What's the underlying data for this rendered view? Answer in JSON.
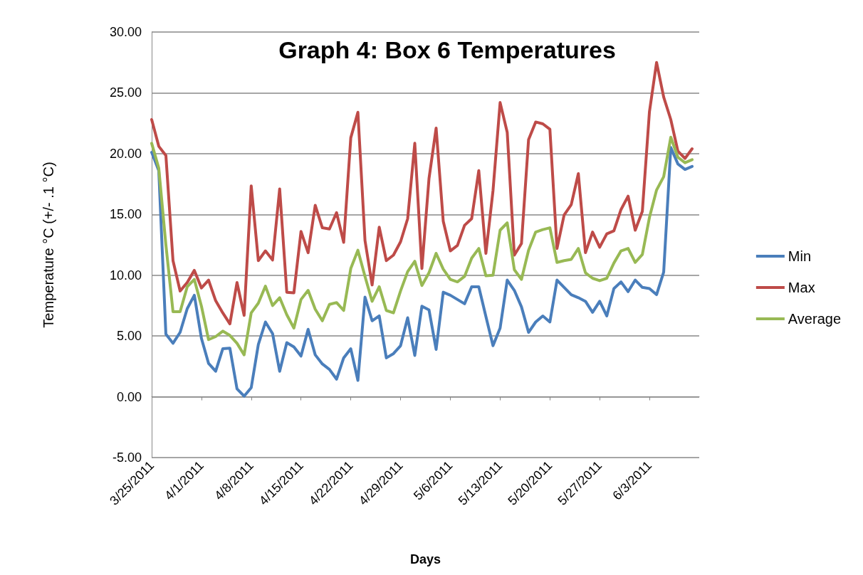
{
  "chart_data": {
    "type": "line",
    "title": "Graph 4: Box 6 Temperatures",
    "xlabel": "Days",
    "ylabel": "Temperature °C (+/- .1 °C)",
    "x": [
      "2011-03-25",
      "2011-03-26",
      "2011-03-27",
      "2011-03-28",
      "2011-03-29",
      "2011-03-30",
      "2011-03-31",
      "2011-04-01",
      "2011-04-02",
      "2011-04-03",
      "2011-04-04",
      "2011-04-05",
      "2011-04-06",
      "2011-04-07",
      "2011-04-08",
      "2011-04-09",
      "2011-04-10",
      "2011-04-11",
      "2011-04-12",
      "2011-04-13",
      "2011-04-14",
      "2011-04-15",
      "2011-04-16",
      "2011-04-17",
      "2011-04-18",
      "2011-04-19",
      "2011-04-20",
      "2011-04-21",
      "2011-04-22",
      "2011-04-23",
      "2011-04-24",
      "2011-04-25",
      "2011-04-26",
      "2011-04-27",
      "2011-04-28",
      "2011-04-29",
      "2011-04-30",
      "2011-05-01",
      "2011-05-02",
      "2011-05-03",
      "2011-05-04",
      "2011-05-05",
      "2011-05-06",
      "2011-05-07",
      "2011-05-08",
      "2011-05-09",
      "2011-05-10",
      "2011-05-11",
      "2011-05-12",
      "2011-05-13",
      "2011-05-14",
      "2011-05-15",
      "2011-05-16",
      "2011-05-17",
      "2011-05-18",
      "2011-05-19",
      "2011-05-20",
      "2011-05-21",
      "2011-05-22",
      "2011-05-23",
      "2011-05-24",
      "2011-05-25",
      "2011-05-26",
      "2011-05-27",
      "2011-05-28",
      "2011-05-29",
      "2011-05-30",
      "2011-05-31",
      "2011-06-01",
      "2011-06-02",
      "2011-06-03",
      "2011-06-04",
      "2011-06-05",
      "2011-06-06",
      "2011-06-07",
      "2011-06-08",
      "2011-06-09"
    ],
    "series": [
      {
        "name": "Min",
        "color": "#4a7ebb",
        "values": [
          20.1,
          18.6,
          5.15,
          4.4,
          5.3,
          7.25,
          8.35,
          4.8,
          2.75,
          2.1,
          3.95,
          4.0,
          0.65,
          0.05,
          0.75,
          4.3,
          6.15,
          5.2,
          2.1,
          4.45,
          4.1,
          3.35,
          5.55,
          3.45,
          2.7,
          2.25,
          1.45,
          3.2,
          3.95,
          1.35,
          8.2,
          6.25,
          6.65,
          3.2,
          3.55,
          4.2,
          6.5,
          3.4,
          7.45,
          7.15,
          3.9,
          8.6,
          8.35,
          8.0,
          7.65,
          9.05,
          9.05,
          6.6,
          4.2,
          5.65,
          9.6,
          8.75,
          7.4,
          5.3,
          6.15,
          6.65,
          6.15,
          9.6,
          9.0,
          8.4,
          8.15,
          7.85,
          6.95,
          7.85,
          6.65,
          8.9,
          9.45,
          8.65,
          9.6,
          9.0,
          8.9,
          8.4,
          10.25,
          20.5,
          19.15,
          18.7,
          18.95
        ]
      },
      {
        "name": "Max",
        "color": "#be4b48",
        "values": [
          22.8,
          20.6,
          19.85,
          11.2,
          8.7,
          9.4,
          10.4,
          8.95,
          9.6,
          7.9,
          6.9,
          6.0,
          9.4,
          6.7,
          17.35,
          11.2,
          12.0,
          11.25,
          17.1,
          8.6,
          8.55,
          13.6,
          11.85,
          15.75,
          13.9,
          13.8,
          15.15,
          12.7,
          21.3,
          23.4,
          12.85,
          9.2,
          13.95,
          11.2,
          11.65,
          12.75,
          14.65,
          20.85,
          10.55,
          17.95,
          22.1,
          14.45,
          12.0,
          12.45,
          14.1,
          14.65,
          18.6,
          11.8,
          16.95,
          24.2,
          21.75,
          11.65,
          12.6,
          21.15,
          22.6,
          22.45,
          22.0,
          12.2,
          14.95,
          15.8,
          18.35,
          11.85,
          13.55,
          12.3,
          13.4,
          13.65,
          15.4,
          16.5,
          13.7,
          15.25,
          23.45,
          27.5,
          24.65,
          22.8,
          20.2,
          19.6,
          20.4
        ]
      },
      {
        "name": "Average",
        "color": "#98b954",
        "values": [
          20.85,
          18.8,
          12.5,
          7.0,
          7.0,
          9.05,
          9.65,
          7.45,
          4.7,
          4.95,
          5.4,
          5.05,
          4.4,
          3.45,
          6.9,
          7.7,
          9.1,
          7.5,
          8.15,
          6.75,
          5.65,
          8.0,
          8.75,
          7.2,
          6.25,
          7.6,
          7.75,
          7.1,
          10.55,
          12.05,
          9.9,
          7.85,
          9.05,
          7.1,
          6.9,
          8.7,
          10.3,
          11.15,
          9.15,
          10.2,
          11.8,
          10.5,
          9.65,
          9.45,
          9.9,
          11.4,
          12.2,
          9.95,
          10.0,
          13.7,
          14.3,
          10.45,
          9.65,
          12.05,
          13.55,
          13.75,
          13.9,
          11.05,
          11.2,
          11.3,
          12.2,
          10.2,
          9.75,
          9.55,
          9.75,
          11.0,
          12.0,
          12.2,
          11.05,
          11.7,
          14.75,
          17.0,
          18.1,
          21.35,
          19.7,
          19.25,
          19.5
        ]
      }
    ],
    "xlim": [
      "2011-03-25",
      "2011-06-10"
    ],
    "xticks": [
      {
        "value": "2011-03-25",
        "label": "3/25/2011"
      },
      {
        "value": "2011-04-01",
        "label": "4/1/2011"
      },
      {
        "value": "2011-04-08",
        "label": "4/8/2011"
      },
      {
        "value": "2011-04-15",
        "label": "4/15/2011"
      },
      {
        "value": "2011-04-22",
        "label": "4/22/2011"
      },
      {
        "value": "2011-04-29",
        "label": "4/29/2011"
      },
      {
        "value": "2011-05-06",
        "label": "5/6/2011"
      },
      {
        "value": "2011-05-13",
        "label": "5/13/2011"
      },
      {
        "value": "2011-05-20",
        "label": "5/20/2011"
      },
      {
        "value": "2011-05-27",
        "label": "5/27/2011"
      },
      {
        "value": "2011-06-03",
        "label": "6/3/2011"
      }
    ],
    "ylim": [
      -5,
      30
    ],
    "yticks": [
      {
        "value": -5,
        "label": "-5.00"
      },
      {
        "value": 0,
        "label": "0.00"
      },
      {
        "value": 5,
        "label": "5.00"
      },
      {
        "value": 10,
        "label": "10.00"
      },
      {
        "value": 15,
        "label": "15.00"
      },
      {
        "value": 20,
        "label": "20.00"
      },
      {
        "value": 25,
        "label": "25.00"
      },
      {
        "value": 30,
        "label": "30.00"
      }
    ],
    "grid": "y",
    "legend": "right",
    "marker": "none",
    "line_style": "solid"
  }
}
